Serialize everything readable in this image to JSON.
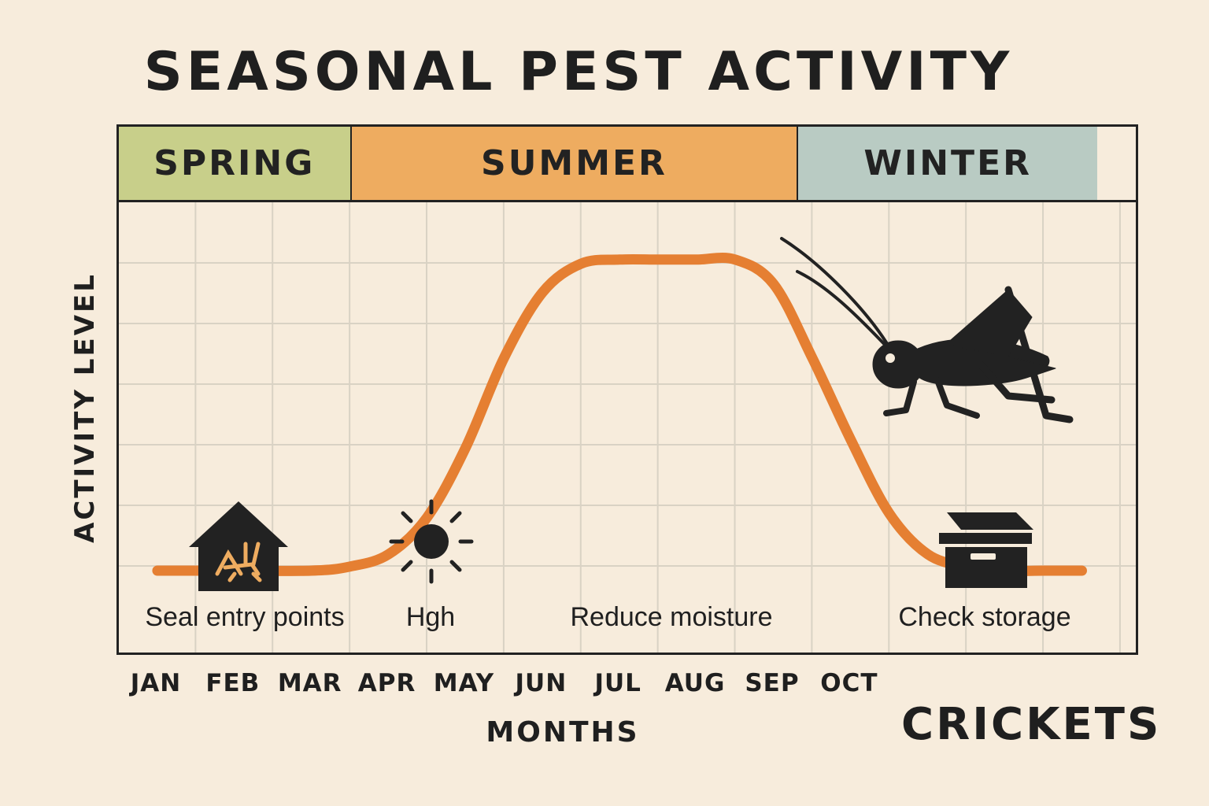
{
  "title": "SEASONAL PEST ACTIVITY",
  "seasons": [
    {
      "label": "SPRING",
      "color": "#c8cf8a",
      "start_month": 0,
      "end_month": 3
    },
    {
      "label": "SUMMER",
      "color": "#eeac60",
      "start_month": 3,
      "end_month": 8.8
    },
    {
      "label": "WINTER",
      "color": "#b9cbc3",
      "start_month": 8.8,
      "end_month": 13.2
    }
  ],
  "pest_name": "CRICKETS",
  "tips": [
    {
      "text": "Seal entry points",
      "icon": "house-cricket-icon"
    },
    {
      "text": "Hgh",
      "icon": "sun-icon"
    },
    {
      "text": "Reduce moisture",
      "icon": ""
    },
    {
      "text": "Check storage",
      "icon": "storage-box-icon"
    }
  ],
  "chart_data": {
    "type": "line",
    "title": "SEASONAL PEST ACTIVITY",
    "xlabel": "MONTHS",
    "ylabel": "ACTIVITY LEVEL",
    "categories": [
      "JAN",
      "FEB",
      "MAR",
      "APR",
      "MAY",
      "JUN",
      "JUL",
      "AUG",
      "SEP",
      "OCT"
    ],
    "x": [
      0.0,
      1.0,
      2.0,
      2.5,
      3.0,
      3.5,
      4.0,
      4.5,
      5.0,
      5.5,
      6.0,
      6.5,
      7.0,
      7.5,
      8.0,
      8.5,
      9.0,
      9.5,
      10.0,
      10.5,
      11.0,
      11.5,
      12.0
    ],
    "series": [
      {
        "values": [
          0.2,
          0.2,
          0.2,
          0.21,
          0.24,
          0.33,
          0.5,
          0.72,
          0.88,
          0.95,
          0.96,
          0.96,
          0.96,
          0.96,
          0.9,
          0.72,
          0.52,
          0.34,
          0.24,
          0.21,
          0.2,
          0.2,
          0.2
        ],
        "color": "#e57f32"
      }
    ],
    "xlim": [
      -0.5,
      12.7
    ],
    "ylim": [
      0,
      1.1
    ],
    "grid": true,
    "line_color": "#e57f32",
    "grid_color": "#d9d2c4"
  }
}
